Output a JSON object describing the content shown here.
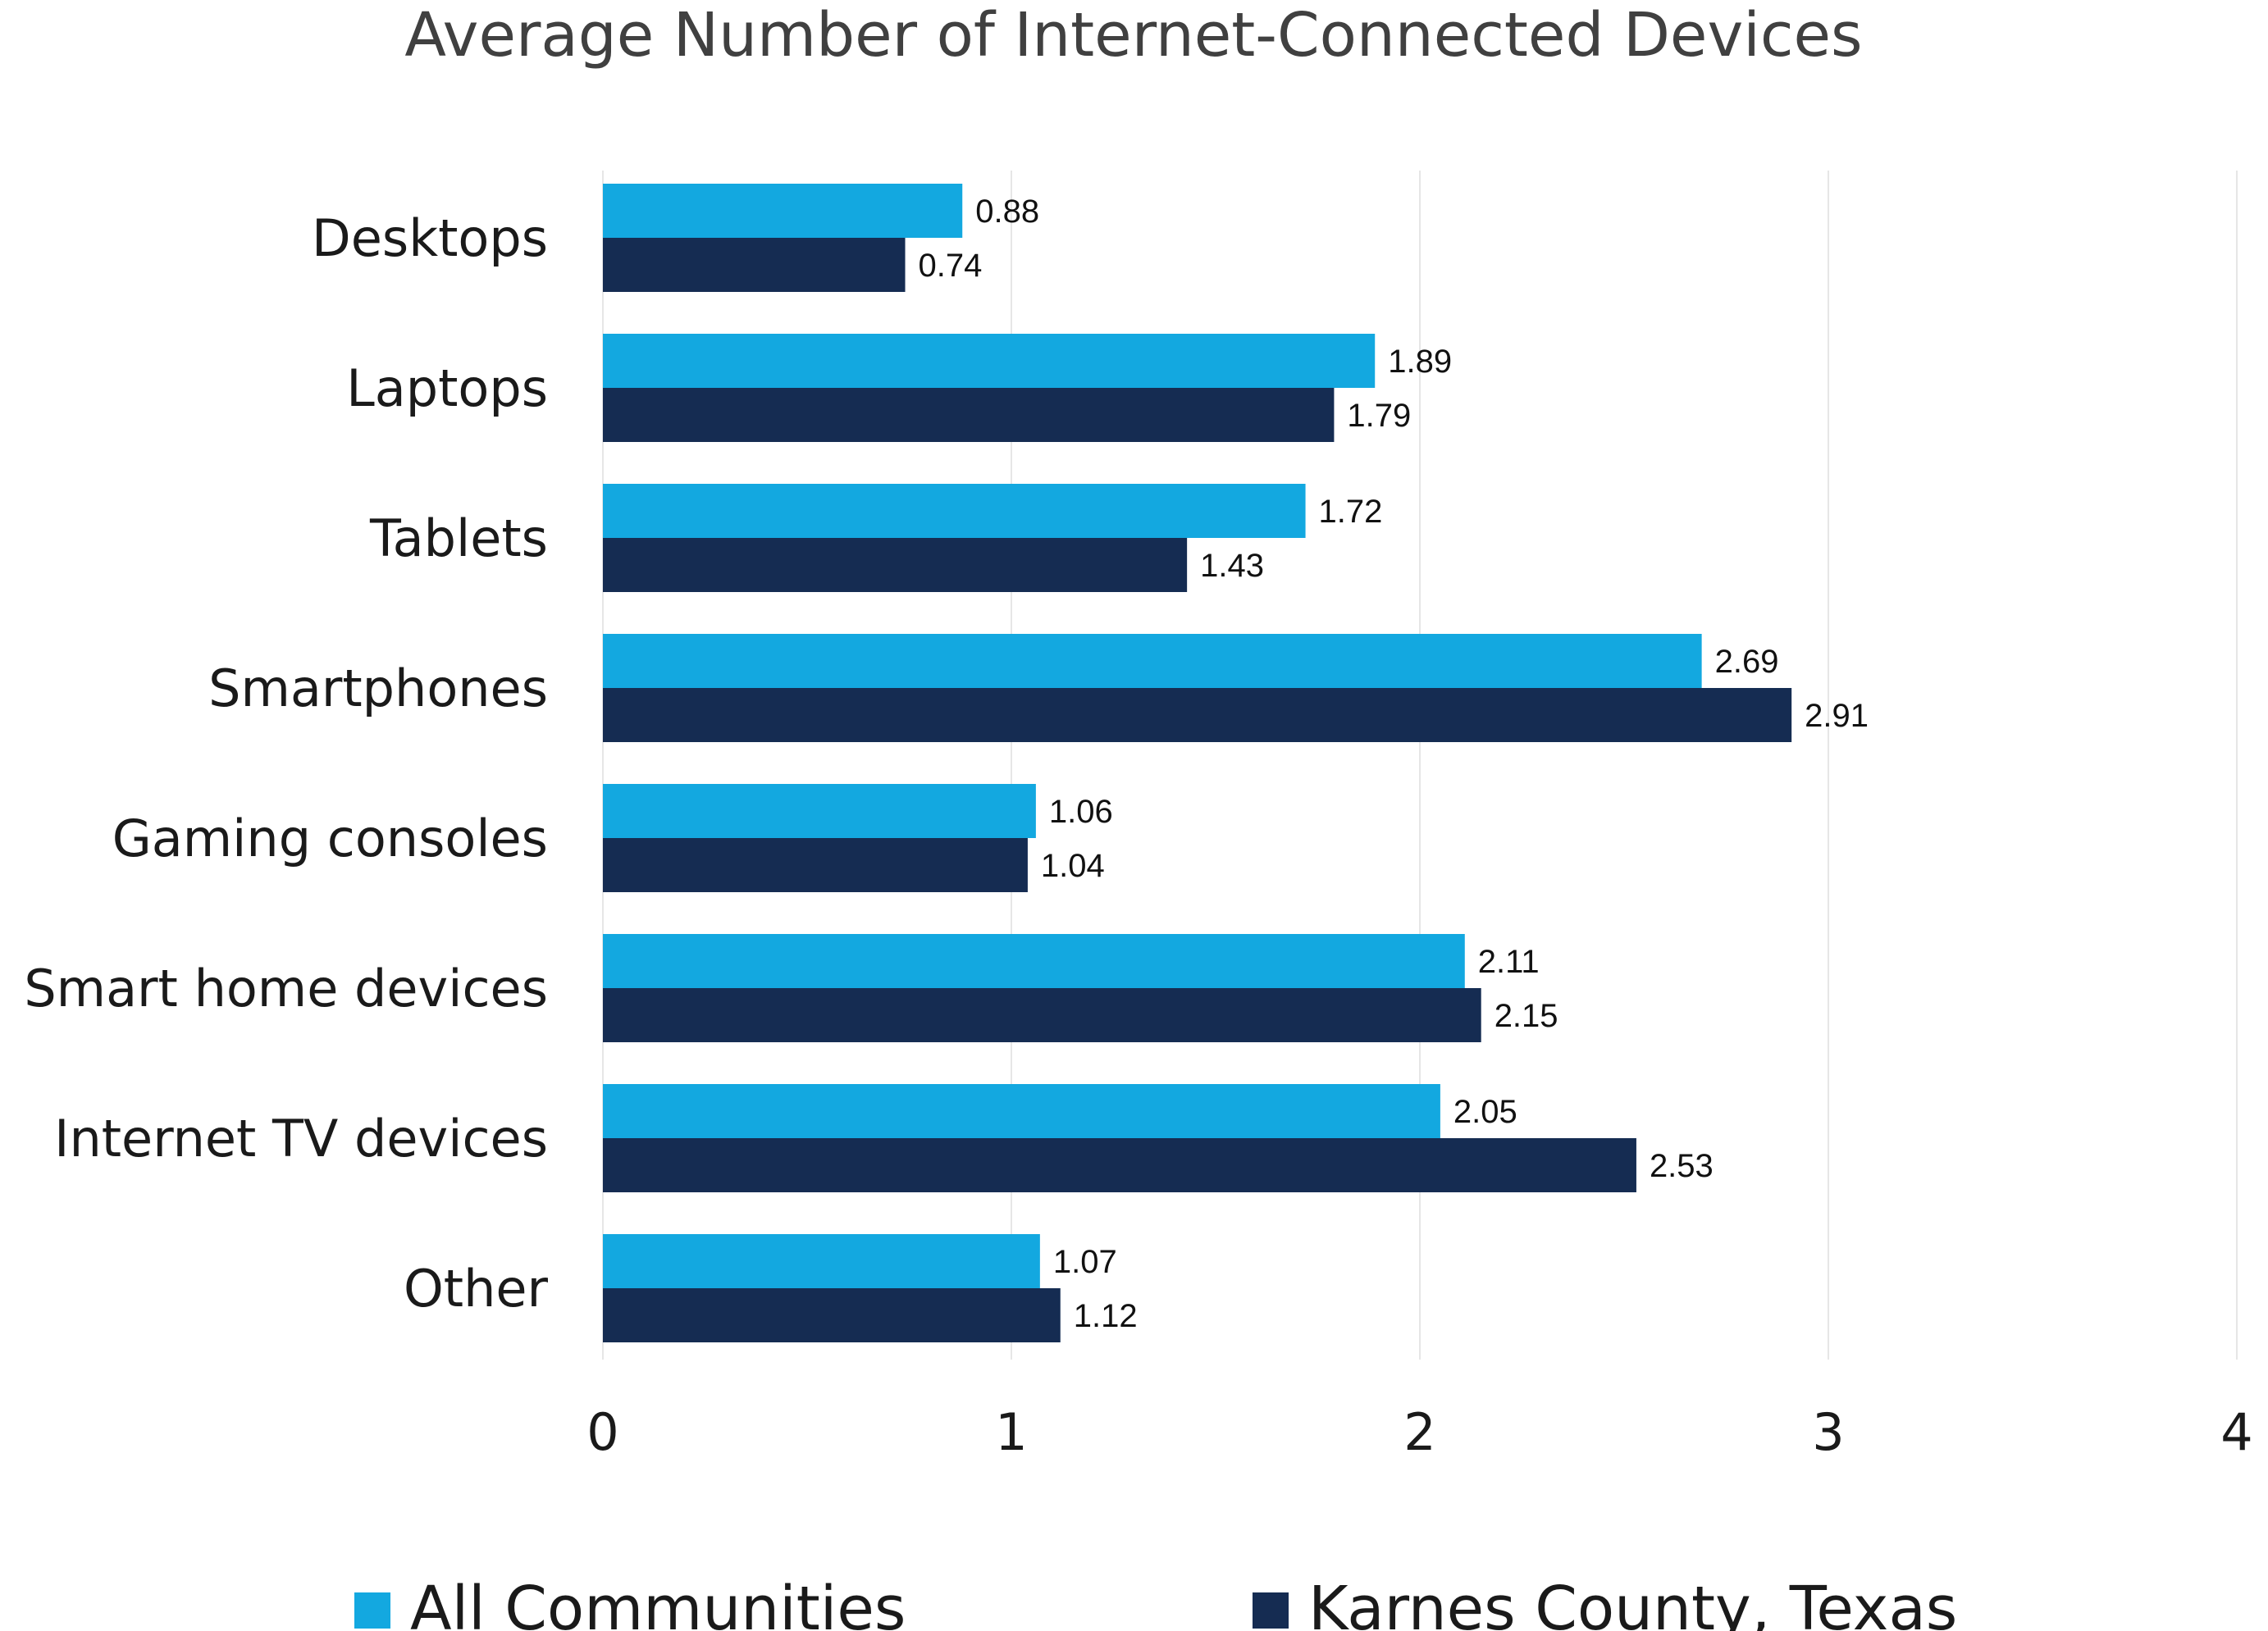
{
  "chart_data": {
    "type": "bar",
    "orientation": "horizontal",
    "title": "Average Number of Internet-Connected Devices",
    "categories": [
      "Desktops",
      "Laptops",
      "Tablets",
      "Smartphones",
      "Gaming consoles",
      "Smart home devices",
      "Internet TV devices",
      "Other"
    ],
    "series": [
      {
        "name": "All Communities",
        "color": "#13a8e0",
        "values": [
          0.88,
          1.89,
          1.72,
          2.69,
          1.06,
          2.11,
          2.05,
          1.07
        ]
      },
      {
        "name": "Karnes County, Texas",
        "color": "#152c52",
        "values": [
          0.74,
          1.79,
          1.43,
          2.91,
          1.04,
          2.15,
          2.53,
          1.12
        ]
      }
    ],
    "value_labels": [
      [
        "0.88",
        "1.89",
        "1.72",
        "2.69",
        "1.06",
        "2.11",
        "2.05",
        "1.07"
      ],
      [
        "0.74",
        "1.79",
        "1.43",
        "2.91",
        "1.04",
        "2.15",
        "2.53",
        "1.12"
      ]
    ],
    "xticks": [
      "0",
      "1",
      "2",
      "3",
      "4"
    ],
    "xlim": [
      0,
      4
    ],
    "grid": true,
    "gridline_color": "#e6e6e6",
    "legend_position": "bottom"
  }
}
